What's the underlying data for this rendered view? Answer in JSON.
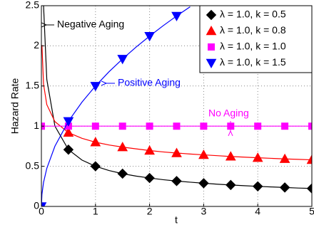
{
  "chart_data": {
    "type": "line",
    "xlabel": "t",
    "ylabel": "Hazard Rate",
    "xlim": [
      0,
      5
    ],
    "ylim": [
      0,
      2.5
    ],
    "xticks": [
      0,
      1,
      2,
      3,
      4,
      5
    ],
    "yticks": [
      0,
      0.5,
      1,
      1.5,
      2,
      2.5
    ],
    "grid": true,
    "legend": "upper right",
    "annotations": [
      {
        "text": "Negative Aging",
        "color": "#000000"
      },
      {
        "text": "Positive Aging",
        "color": "#0000ff"
      },
      {
        "text": "No Aging",
        "color": "#ff00ff"
      }
    ],
    "series": [
      {
        "name": "λ =  1.0, k =  0.5",
        "color": "#000000",
        "marker": "diamond",
        "x": [
          0.04,
          0.1,
          0.25,
          0.5,
          0.75,
          1,
          1.25,
          1.5,
          1.75,
          2,
          2.25,
          2.5,
          2.75,
          3,
          3.25,
          3.5,
          3.75,
          4,
          4.25,
          4.5,
          4.75,
          5
        ],
        "values": [
          2.5,
          1.581,
          1.0,
          0.707,
          0.577,
          0.5,
          0.447,
          0.408,
          0.378,
          0.354,
          0.333,
          0.316,
          0.302,
          0.289,
          0.277,
          0.267,
          0.258,
          0.25,
          0.243,
          0.236,
          0.229,
          0.224
        ]
      },
      {
        "name": "λ =  1.0, k =  0.8",
        "color": "#ff0000",
        "marker": "triangle-up",
        "x": [
          0.01,
          0.04,
          0.1,
          0.25,
          0.5,
          0.75,
          1,
          1.25,
          1.5,
          1.75,
          2,
          2.25,
          2.5,
          2.75,
          3,
          3.25,
          3.5,
          3.75,
          4,
          4.25,
          4.5,
          4.75,
          5
        ],
        "values": [
          2.01,
          1.522,
          1.268,
          1.056,
          0.919,
          0.848,
          0.8,
          0.765,
          0.739,
          0.717,
          0.696,
          0.679,
          0.665,
          0.653,
          0.642,
          0.632,
          0.622,
          0.614,
          0.606,
          0.599,
          0.592,
          0.586,
          0.58
        ]
      },
      {
        "name": "λ =  1.0, k =  1.0",
        "color": "#ff00ff",
        "marker": "square",
        "x": [
          0,
          0.5,
          1,
          1.5,
          2,
          2.5,
          3,
          3.5,
          4,
          4.5,
          5
        ],
        "values": [
          1,
          1,
          1,
          1,
          1,
          1,
          1,
          1,
          1,
          1,
          1
        ]
      },
      {
        "name": "λ =  1.0, k =  1.5",
        "color": "#0000ff",
        "marker": "triangle-down",
        "x": [
          0,
          0.01,
          0.04,
          0.1,
          0.25,
          0.5,
          0.75,
          1,
          1.25,
          1.5,
          1.75,
          2,
          2.25,
          2.5,
          2.75
        ],
        "values": [
          0,
          0.15,
          0.3,
          0.474,
          0.75,
          1.061,
          1.299,
          1.5,
          1.677,
          1.837,
          1.984,
          2.121,
          2.25,
          2.372,
          2.487
        ]
      }
    ]
  }
}
